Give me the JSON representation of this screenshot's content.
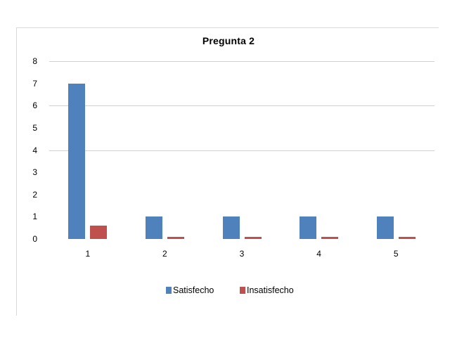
{
  "chart_data": {
    "type": "bar",
    "title": "Pregunta 2",
    "xlabel": "",
    "ylabel": "",
    "categories": [
      "1",
      "2",
      "3",
      "4",
      "5"
    ],
    "series": [
      {
        "name": "Satisfecho",
        "color": "#4F81BD",
        "values": [
          7,
          1,
          1,
          1,
          1
        ]
      },
      {
        "name": "Insatisfecho",
        "color": "#C0504D",
        "values": [
          0.6,
          0.1,
          0.1,
          0.1,
          0.1
        ]
      }
    ],
    "ylim": [
      0,
      8
    ],
    "yticks": [
      "0",
      "1",
      "2",
      "3",
      "4",
      "5",
      "6",
      "7",
      "8"
    ],
    "gridlines": [
      4,
      6,
      8
    ],
    "legend_position": "bottom"
  },
  "legend": {
    "items": [
      {
        "label": "Satisfecho",
        "color": "#4F81BD"
      },
      {
        "label": "Insatisfecho",
        "color": "#C0504D"
      }
    ]
  }
}
